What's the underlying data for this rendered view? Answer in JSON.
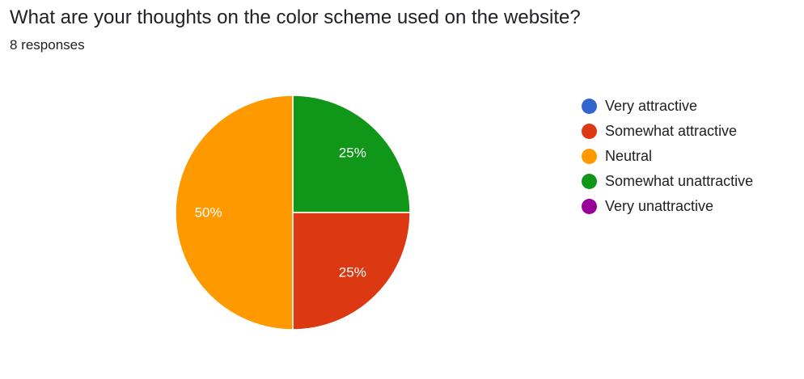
{
  "question": {
    "title": "What are your thoughts on the color scheme used on the website?",
    "responses": "8 responses"
  },
  "chart_data": {
    "type": "pie",
    "title": "",
    "total_responses": 8,
    "legend_position": "right",
    "slices": [
      {
        "label": "Very attractive",
        "value": 0,
        "percent": "0%",
        "color": "#3366cc"
      },
      {
        "label": "Somewhat attractive",
        "value": 2,
        "percent": "25%",
        "color": "#dc3912"
      },
      {
        "label": "Neutral",
        "value": 4,
        "percent": "50%",
        "color": "#ff9900"
      },
      {
        "label": "Somewhat unattractive",
        "value": 2,
        "percent": "25%",
        "color": "#109618"
      },
      {
        "label": "Very unattractive",
        "value": 0,
        "percent": "0%",
        "color": "#990099"
      }
    ]
  }
}
